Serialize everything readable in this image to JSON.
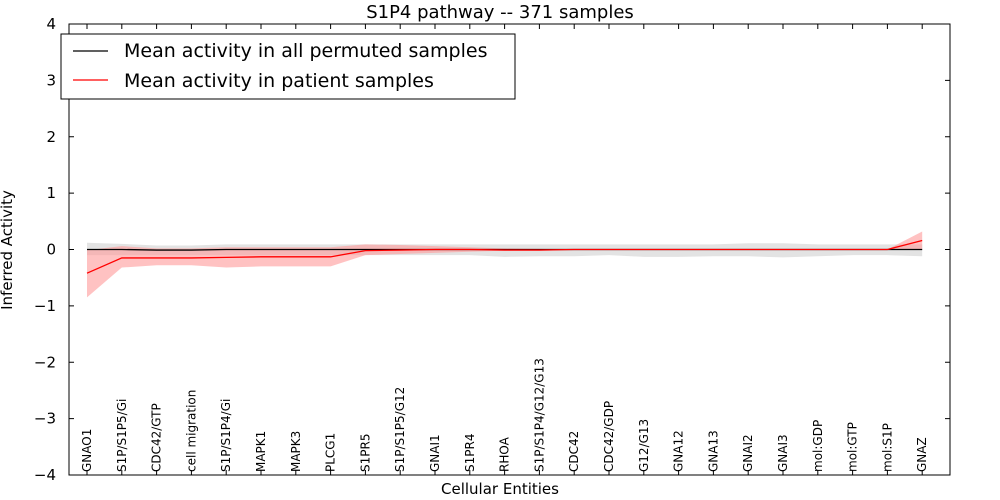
{
  "chart_data": {
    "type": "line",
    "title": "S1P4 pathway -- 371 samples",
    "xlabel": "Cellular Entities",
    "ylabel": "Inferred Activity",
    "ylim": [
      -4,
      4
    ],
    "yticks": [
      "4",
      "3",
      "2",
      "1",
      "0",
      "−1",
      "−2",
      "−3",
      "−4"
    ],
    "ytick_values": [
      4,
      3,
      2,
      1,
      0,
      -1,
      -2,
      -3,
      -4
    ],
    "grid": false,
    "legend_position": "top-left",
    "categories": [
      "GNAO1",
      "S1P/S1P5/Gi",
      "CDC42/GTP",
      "cell migration",
      "S1P/S1P4/Gi",
      "MAPK1",
      "MAPK3",
      "PLCG1",
      "S1PR5",
      "S1P/S1P5/G12",
      "GNAI1",
      "S1PR4",
      "RHOA",
      "S1P/S1P4/G12/G13",
      "CDC42",
      "CDC42/GDP",
      "G12/G13",
      "GNA12",
      "GNA13",
      "GNAI2",
      "GNAI3",
      "mol:GDP",
      "mol:GTP",
      "mol:S1P",
      "GNAZ"
    ],
    "series": [
      {
        "name": "Mean activity in all permuted samples",
        "color": "#000000",
        "values": [
          0,
          0,
          -0.01,
          -0.01,
          0,
          0,
          0,
          0,
          0,
          0,
          0,
          0,
          0,
          0,
          0,
          0,
          0,
          0,
          0,
          0,
          0,
          0,
          0,
          0,
          0
        ],
        "band_upper": [
          0.12,
          0.1,
          0.07,
          0.07,
          0.09,
          0.09,
          0.09,
          0.09,
          0.09,
          0.09,
          0.09,
          0.09,
          0.09,
          0.09,
          0.09,
          0.09,
          0.09,
          0.09,
          0.09,
          0.11,
          0.11,
          0.09,
          0.09,
          0.09,
          0.09
        ],
        "band_lower": [
          -0.1,
          -0.1,
          -0.1,
          -0.1,
          -0.1,
          -0.1,
          -0.1,
          -0.1,
          -0.1,
          -0.1,
          -0.1,
          -0.1,
          -0.13,
          -0.12,
          -0.12,
          -0.1,
          -0.13,
          -0.13,
          -0.12,
          -0.12,
          -0.14,
          -0.12,
          -0.1,
          -0.1,
          -0.12
        ],
        "band_color": "#b0b0b0"
      },
      {
        "name": "Mean activity in patient samples",
        "color": "#ff0000",
        "values": [
          -0.42,
          -0.15,
          -0.15,
          -0.15,
          -0.14,
          -0.13,
          -0.13,
          -0.13,
          -0.02,
          -0.01,
          0,
          0,
          -0.01,
          -0.01,
          0,
          0,
          0,
          0,
          0,
          0,
          0,
          0,
          0,
          0,
          0.16
        ],
        "band_upper": [
          -0.01,
          0.06,
          0.02,
          0.02,
          0.04,
          0.04,
          0.04,
          0.04,
          0.09,
          0.08,
          0.06,
          0.04,
          0.02,
          0.01,
          0,
          0,
          0,
          0,
          0,
          0,
          0,
          0,
          0,
          0,
          0.32
        ],
        "band_lower": [
          -0.85,
          -0.32,
          -0.28,
          -0.28,
          -0.32,
          -0.3,
          -0.3,
          -0.3,
          -0.1,
          -0.08,
          -0.06,
          -0.04,
          -0.02,
          -0.01,
          0,
          0,
          0,
          0,
          0,
          0,
          0,
          0,
          0,
          0,
          0
        ],
        "band_color": "#ff9999"
      }
    ]
  }
}
